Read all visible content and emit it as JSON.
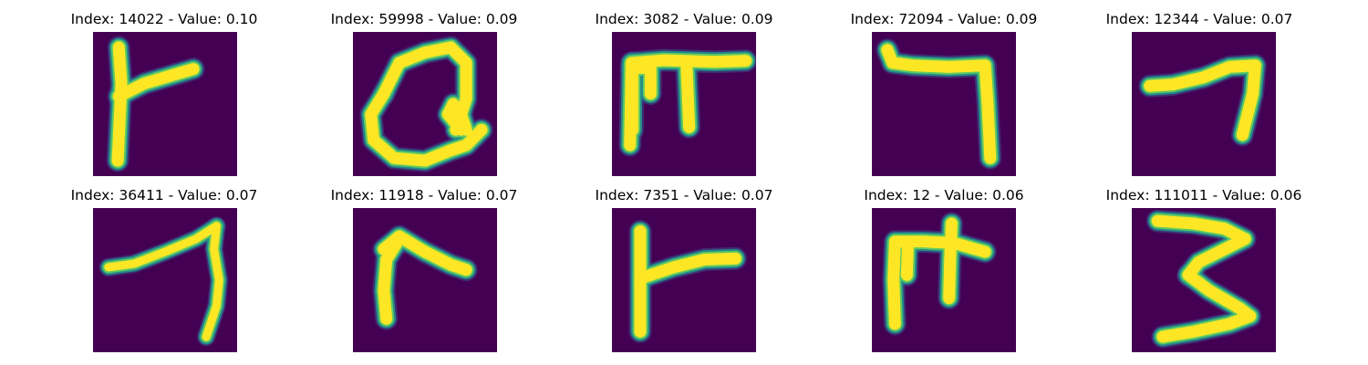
{
  "colors": {
    "background": "#440154",
    "stroke_core": "#fde725",
    "stroke_mid": "#5ec962",
    "stroke_edge": "#21918c",
    "stroke_outer": "#3b528b"
  },
  "figure": {
    "panels": [
      {
        "title": "Index: 14022 - Value: 0.10",
        "glyph": "digit-7-rotated"
      },
      {
        "title": "Index: 59998 - Value: 0.09",
        "glyph": "digit-8-rotated"
      },
      {
        "title": "Index: 3082 - Value: 0.09",
        "glyph": "digit-4-rotated"
      },
      {
        "title": "Index: 72094 - Value: 0.09",
        "glyph": "digit-7-rotated"
      },
      {
        "title": "Index: 12344 - Value: 0.07",
        "glyph": "digit-7"
      },
      {
        "title": "Index: 36411 - Value: 0.07",
        "glyph": "digit-7"
      },
      {
        "title": "Index: 11918 - Value: 0.07",
        "glyph": "digit-7-rotated"
      },
      {
        "title": "Index: 7351 - Value: 0.07",
        "glyph": "digit-7-rotated"
      },
      {
        "title": "Index: 12 - Value: 0.06",
        "glyph": "digit-4-rotated"
      },
      {
        "title": "Index: 111011 - Value: 0.06",
        "glyph": "digit-3"
      }
    ]
  }
}
